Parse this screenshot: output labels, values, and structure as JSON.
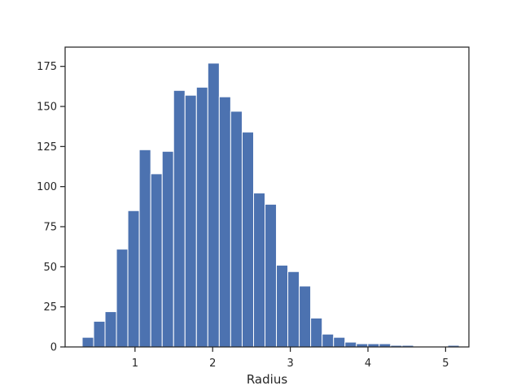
{
  "chart_data": {
    "type": "bar",
    "title": "",
    "xlabel": "Radius",
    "ylabel": "",
    "xlim": [
      0.1,
      5.3
    ],
    "ylim": [
      0,
      187
    ],
    "grid": false,
    "bar_color": "#4c72b0",
    "bin_width": 0.1471,
    "bins": [
      {
        "x0": 0.32,
        "x1": 0.467,
        "count": 6
      },
      {
        "x0": 0.467,
        "x1": 0.614,
        "count": 16
      },
      {
        "x0": 0.614,
        "x1": 0.761,
        "count": 22
      },
      {
        "x0": 0.761,
        "x1": 0.908,
        "count": 61
      },
      {
        "x0": 0.908,
        "x1": 1.055,
        "count": 85
      },
      {
        "x0": 1.055,
        "x1": 1.203,
        "count": 123
      },
      {
        "x0": 1.203,
        "x1": 1.35,
        "count": 108
      },
      {
        "x0": 1.35,
        "x1": 1.497,
        "count": 122
      },
      {
        "x0": 1.497,
        "x1": 1.644,
        "count": 160
      },
      {
        "x0": 1.644,
        "x1": 1.791,
        "count": 157
      },
      {
        "x0": 1.791,
        "x1": 1.938,
        "count": 162
      },
      {
        "x0": 1.938,
        "x1": 2.085,
        "count": 177
      },
      {
        "x0": 2.085,
        "x1": 2.232,
        "count": 156
      },
      {
        "x0": 2.232,
        "x1": 2.38,
        "count": 147
      },
      {
        "x0": 2.38,
        "x1": 2.527,
        "count": 134
      },
      {
        "x0": 2.527,
        "x1": 2.674,
        "count": 96
      },
      {
        "x0": 2.674,
        "x1": 2.821,
        "count": 89
      },
      {
        "x0": 2.821,
        "x1": 2.968,
        "count": 51
      },
      {
        "x0": 2.968,
        "x1": 3.115,
        "count": 47
      },
      {
        "x0": 3.115,
        "x1": 3.262,
        "count": 38
      },
      {
        "x0": 3.262,
        "x1": 3.41,
        "count": 18
      },
      {
        "x0": 3.41,
        "x1": 3.557,
        "count": 8
      },
      {
        "x0": 3.557,
        "x1": 3.704,
        "count": 6
      },
      {
        "x0": 3.704,
        "x1": 3.851,
        "count": 3
      },
      {
        "x0": 3.851,
        "x1": 3.998,
        "count": 2
      },
      {
        "x0": 3.998,
        "x1": 4.145,
        "count": 2
      },
      {
        "x0": 4.145,
        "x1": 4.292,
        "count": 2
      },
      {
        "x0": 4.292,
        "x1": 4.439,
        "count": 1
      },
      {
        "x0": 4.439,
        "x1": 4.587,
        "count": 1
      },
      {
        "x0": 4.587,
        "x1": 4.734,
        "count": 0
      },
      {
        "x0": 4.734,
        "x1": 4.881,
        "count": 0
      },
      {
        "x0": 4.881,
        "x1": 5.028,
        "count": 0
      },
      {
        "x0": 5.028,
        "x1": 5.175,
        "count": 1
      }
    ],
    "x_ticks": [
      1,
      2,
      3,
      4,
      5
    ],
    "x_tick_labels": [
      "1",
      "2",
      "3",
      "4",
      "5"
    ],
    "y_ticks": [
      0,
      25,
      50,
      75,
      100,
      125,
      150,
      175
    ],
    "y_tick_labels": [
      "0",
      "25",
      "50",
      "75",
      "100",
      "125",
      "150",
      "175"
    ]
  }
}
